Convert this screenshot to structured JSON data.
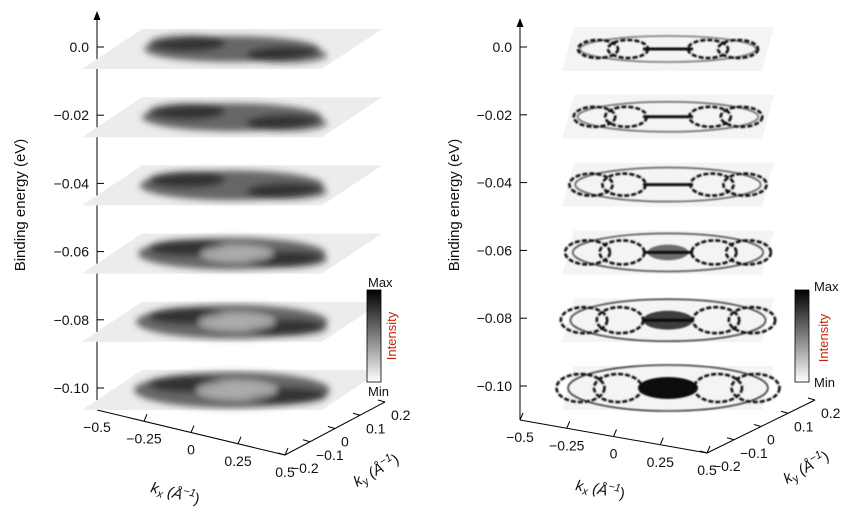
{
  "chart_data": [
    {
      "type": "heatmap",
      "panel": "left",
      "ylabel": "Binding energy (eV)",
      "xlabel": "k_x (Å^-1)",
      "zlabel": "k_y (Å^-1)",
      "energy_slices": [
        0.0,
        -0.02,
        -0.04,
        -0.06,
        -0.08,
        -0.1
      ],
      "energy_tick_labels": [
        "0.0",
        "−0.02",
        "−0.04",
        "−0.06",
        "−0.08",
        "−0.10"
      ],
      "kx_range": [
        -0.5,
        0.5
      ],
      "kx_ticks": [
        -0.5,
        -0.25,
        0,
        0.25,
        0.5
      ],
      "kx_tick_labels": [
        "−0.5",
        "−0.25",
        "0",
        "0.25",
        "0.5"
      ],
      "ky_range": [
        -0.2,
        0.2
      ],
      "ky_ticks": [
        -0.2,
        -0.1,
        0,
        0.1,
        0.2
      ],
      "ky_tick_labels": [
        "−0.2",
        "−0.1",
        "0",
        "0.1",
        "0.2"
      ],
      "colorbar": {
        "max_label": "Max",
        "min_label": "Min",
        "label": "Intensity",
        "label_color": "#cc2200"
      }
    },
    {
      "type": "heatmap",
      "panel": "right",
      "ylabel": "Binding energy (eV)",
      "xlabel": "k_x (Å^-1)",
      "zlabel": "k_y (Å^-1)",
      "energy_slices": [
        0.0,
        -0.02,
        -0.04,
        -0.06,
        -0.08,
        -0.1
      ],
      "energy_tick_labels": [
        "0.0",
        "−0.02",
        "−0.04",
        "−0.06",
        "−0.08",
        "−0.10"
      ],
      "kx_range": [
        -0.5,
        0.5
      ],
      "kx_ticks": [
        -0.5,
        -0.25,
        0,
        0.25,
        0.5
      ],
      "kx_tick_labels": [
        "−0.5",
        "−0.25",
        "0",
        "0.25",
        "0.5"
      ],
      "ky_range": [
        -0.2,
        0.2
      ],
      "ky_ticks": [
        -0.2,
        -0.1,
        0,
        0.1,
        0.2
      ],
      "ky_tick_labels": [
        "−0.2",
        "−0.1",
        "0",
        "0.1",
        "0.2"
      ],
      "colorbar": {
        "max_label": "Max",
        "min_label": "Min",
        "label": "Intensity",
        "label_color": "#cc2200"
      }
    }
  ],
  "labels": {
    "ylabel": "Binding energy (eV)",
    "kx_var": "k",
    "kx_sub": "x",
    "kx_unit": " (Å",
    "kx_exp": "−1",
    "kx_close": ")",
    "ky_var": "k",
    "ky_sub": "y",
    "ky_unit": " (Å",
    "ky_exp": "−1",
    "ky_close": ")"
  }
}
